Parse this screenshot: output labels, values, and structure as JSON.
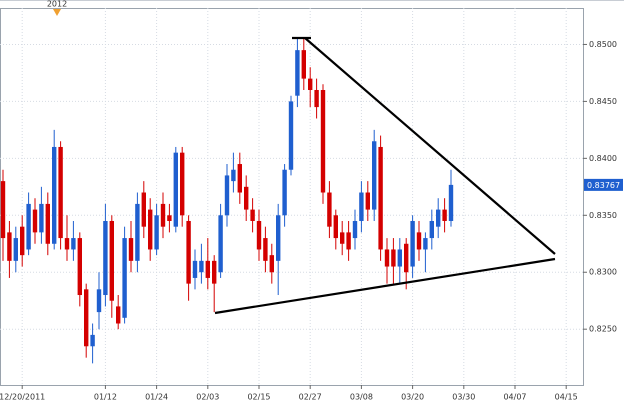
{
  "chart_data": {
    "type": "candlestick",
    "year_marker": "2012",
    "up_color": "#1f5fcf",
    "down_color": "#d40000",
    "categories": [
      null,
      null,
      null,
      "12/20/2011",
      null,
      null,
      null,
      null,
      null,
      null,
      null,
      null,
      null,
      null,
      null,
      null,
      "01/12",
      null,
      null,
      null,
      null,
      null,
      null,
      null,
      "01/24",
      null,
      null,
      null,
      null,
      null,
      null,
      null,
      "02/03",
      null,
      null,
      null,
      null,
      null,
      null,
      null,
      "02/15",
      null,
      null,
      null,
      null,
      null,
      null,
      null,
      "02/27",
      null,
      null,
      null,
      null,
      null,
      null,
      null,
      "03/08",
      null,
      null,
      null,
      null,
      null,
      null,
      null,
      "03/20",
      null,
      null,
      null,
      null,
      null,
      null,
      null,
      "03/30",
      null,
      null,
      null,
      null,
      null,
      null,
      null,
      "04/07",
      null,
      null,
      null,
      null,
      null,
      null,
      null,
      "04/15"
    ],
    "open": [
      0.838,
      0.8335,
      0.831,
      0.834,
      0.832,
      0.8355,
      0.8335,
      0.836,
      0.8325,
      0.841,
      0.833,
      0.832,
      0.833,
      0.8285,
      0.8235,
      0.8265,
      0.828,
      0.8345,
      0.827,
      0.826,
      0.833,
      0.831,
      0.837,
      0.8355,
      0.832,
      0.836,
      0.835,
      0.834,
      0.8405,
      0.8345,
      0.8295,
      0.83,
      0.831,
      0.831,
      0.83,
      0.835,
      0.838,
      0.8395,
      0.8375,
      0.8355,
      0.8345,
      0.833,
      0.8315,
      0.831,
      0.835,
      0.839,
      0.8455,
      0.8495,
      0.847,
      0.846,
      0.846,
      0.837,
      0.835,
      0.8335,
      0.8335,
      0.833,
      0.8345,
      0.837,
      0.8355,
      0.841,
      0.832,
      0.832,
      0.8305,
      0.8325,
      0.8305,
      0.8335,
      0.832,
      0.833,
      0.834,
      0.8355,
      0.8345,
      null,
      null,
      null,
      null,
      null,
      null,
      null,
      null,
      null,
      null,
      null,
      null,
      null,
      null,
      null,
      null,
      null,
      null
    ],
    "high": [
      0.839,
      0.8345,
      0.834,
      0.835,
      0.837,
      0.8365,
      0.8375,
      0.837,
      0.8425,
      0.8415,
      0.835,
      0.8345,
      0.8335,
      0.829,
      0.8255,
      0.83,
      0.836,
      0.835,
      0.828,
      0.834,
      0.8345,
      0.837,
      0.838,
      0.8365,
      0.836,
      0.837,
      0.836,
      0.841,
      0.841,
      0.835,
      0.832,
      0.8325,
      0.833,
      0.8315,
      0.836,
      0.8395,
      0.8405,
      0.8405,
      0.8385,
      0.8365,
      0.8355,
      0.834,
      0.8325,
      0.836,
      0.8395,
      0.8455,
      0.8505,
      0.8505,
      0.848,
      0.847,
      0.8465,
      0.838,
      0.8355,
      0.8345,
      0.8345,
      0.8355,
      0.838,
      0.838,
      0.8425,
      0.842,
      0.833,
      0.833,
      0.833,
      0.833,
      0.835,
      0.8345,
      0.8335,
      0.8355,
      0.8365,
      0.8365,
      0.839,
      null,
      null,
      null,
      null,
      null,
      null,
      null,
      null,
      null,
      null,
      null,
      null,
      null,
      null,
      null,
      null,
      null,
      null
    ],
    "low": [
      0.831,
      0.8295,
      0.83,
      0.8305,
      0.8315,
      0.8325,
      0.8325,
      0.8315,
      0.832,
      0.832,
      0.831,
      0.831,
      0.827,
      0.8225,
      0.822,
      0.825,
      0.827,
      0.826,
      0.825,
      0.8255,
      0.83,
      0.83,
      0.833,
      0.831,
      0.8315,
      0.833,
      0.8335,
      0.8335,
      0.834,
      0.8275,
      0.8285,
      0.829,
      0.8285,
      0.8265,
      0.8295,
      0.834,
      0.837,
      0.836,
      0.8345,
      0.8335,
      0.831,
      0.83,
      0.829,
      0.828,
      0.834,
      0.8385,
      0.8445,
      0.846,
      0.8445,
      0.8435,
      0.836,
      0.833,
      0.832,
      0.8315,
      0.831,
      0.832,
      0.8335,
      0.8345,
      0.8345,
      0.831,
      0.829,
      0.829,
      0.829,
      0.8285,
      0.8295,
      0.831,
      0.83,
      0.832,
      0.833,
      0.8335,
      0.834,
      null,
      null,
      null,
      null,
      null,
      null,
      null,
      null,
      null,
      null,
      null,
      null,
      null,
      null,
      null,
      null,
      null,
      null
    ],
    "close": [
      0.833,
      0.831,
      0.833,
      0.8315,
      0.836,
      0.8335,
      0.836,
      0.8325,
      0.841,
      0.833,
      0.832,
      0.833,
      0.828,
      0.8235,
      0.8245,
      0.8285,
      0.8345,
      0.8275,
      0.8255,
      0.833,
      0.831,
      0.836,
      0.834,
      0.832,
      0.835,
      0.834,
      0.8345,
      0.8405,
      0.835,
      0.829,
      0.831,
      0.831,
      0.8295,
      0.829,
      0.835,
      0.8385,
      0.839,
      0.837,
      0.8355,
      0.8345,
      0.832,
      0.831,
      0.83,
      0.835,
      0.839,
      0.845,
      0.8495,
      0.847,
      0.846,
      0.8445,
      0.837,
      0.834,
      0.833,
      0.8325,
      0.832,
      0.8345,
      0.837,
      0.8355,
      0.8415,
      0.832,
      0.8305,
      0.8305,
      0.832,
      0.83,
      0.8345,
      0.832,
      0.833,
      0.8345,
      0.8355,
      0.8345,
      0.83767,
      null,
      null,
      null,
      null,
      null,
      null,
      null,
      null,
      null,
      null,
      null,
      null,
      null,
      null,
      null,
      null,
      null,
      null
    ],
    "ylim": [
      0.8201,
      0.8532
    ],
    "yticks": [
      {
        "value": 0.825,
        "label": "0.8250"
      },
      {
        "value": 0.83,
        "label": "0.8300"
      },
      {
        "value": 0.835,
        "label": "0.8350"
      },
      {
        "value": 0.84,
        "label": "0.8400"
      },
      {
        "value": 0.845,
        "label": "0.8450"
      },
      {
        "value": 0.85,
        "label": "0.8500"
      }
    ],
    "grid": true
  }
}
